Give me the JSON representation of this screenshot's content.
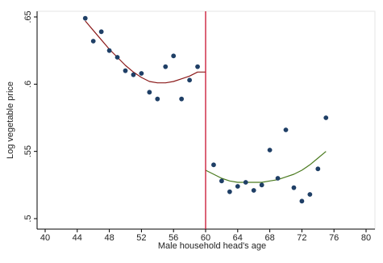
{
  "chart_data": {
    "type": "scatter",
    "title": "",
    "xlabel": "Male household head's age",
    "ylabel": "Log vegetable price",
    "xlim": [
      40,
      80
    ],
    "ylim": [
      0.5,
      0.65
    ],
    "x_ticks": [
      "40",
      "44",
      "48",
      "52",
      "56",
      "60",
      "64",
      "68",
      "72",
      "76",
      "80"
    ],
    "y_ticks": [
      ".5",
      ".55",
      ".6",
      ".65"
    ],
    "grid": false,
    "cutoff": 60,
    "colors": {
      "points": "#1f3f66",
      "fit_left": "#8b1a1a",
      "fit_right": "#4a7a1e",
      "cutoff_line": "#c8102e"
    },
    "series": [
      {
        "x": [
          45,
          46,
          47,
          48,
          49,
          50,
          51,
          52,
          53,
          54,
          55,
          56,
          57,
          58,
          59,
          61,
          62,
          63,
          64,
          65,
          66,
          67,
          68,
          69,
          70,
          71,
          72,
          73,
          74,
          75
        ],
        "y": [
          0.649,
          0.632,
          0.639,
          0.625,
          0.62,
          0.61,
          0.607,
          0.608,
          0.594,
          0.589,
          0.613,
          0.621,
          0.589,
          0.603,
          0.613,
          0.54,
          0.528,
          0.52,
          0.524,
          0.527,
          0.521,
          0.525,
          0.551,
          0.53,
          0.566,
          0.523,
          0.513,
          0.518,
          0.537,
          0.575
        ]
      }
    ],
    "fits": [
      {
        "x": [
          45,
          46,
          47,
          48,
          49,
          50,
          51,
          52,
          53,
          54,
          55,
          56,
          57,
          58,
          59,
          60
        ],
        "y": [
          0.647,
          0.64,
          0.633,
          0.626,
          0.62,
          0.614,
          0.609,
          0.605,
          0.602,
          0.601,
          0.601,
          0.602,
          0.604,
          0.606,
          0.609,
          0.609
        ]
      },
      {
        "x": [
          60,
          61,
          62,
          63,
          64,
          65,
          66,
          67,
          68,
          69,
          70,
          71,
          72,
          73,
          74,
          75
        ],
        "y": [
          0.536,
          0.533,
          0.53,
          0.528,
          0.527,
          0.527,
          0.527,
          0.527,
          0.528,
          0.529,
          0.531,
          0.533,
          0.536,
          0.54,
          0.545,
          0.55
        ]
      }
    ]
  }
}
